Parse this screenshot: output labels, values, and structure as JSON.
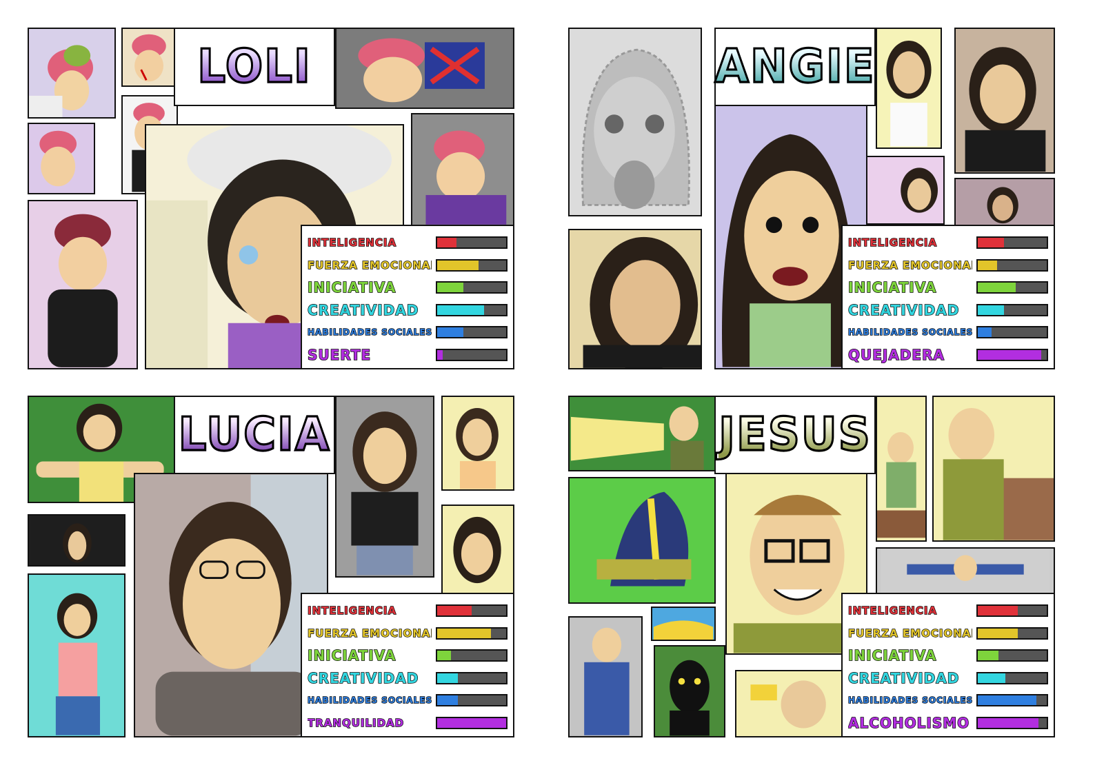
{
  "cards": [
    {
      "name": "LOLI",
      "name_gradient": [
        "#e9dcff",
        "#8a4fc7"
      ],
      "stats": [
        {
          "label": "INTELIGENCIA",
          "value": 0.28,
          "color": "#e0323a"
        },
        {
          "label": "FUERZA EMOCIONAL",
          "value": 0.6,
          "color": "#e2c52a"
        },
        {
          "label": "INICIATIVA",
          "value": 0.38,
          "color": "#7ed43c"
        },
        {
          "label": "CREATIVIDAD",
          "value": 0.68,
          "color": "#33d6e0"
        },
        {
          "label": "HABILIDADES SOCIALES",
          "value": 0.38,
          "color": "#2f7fe0"
        },
        {
          "label": "SUERTE",
          "value": 0.08,
          "color": "#b22ee0"
        }
      ]
    },
    {
      "name": "ANGIE",
      "name_gradient": [
        "#e8fbff",
        "#4aa9a9"
      ],
      "stats": [
        {
          "label": "INTELIGENCIA",
          "value": 0.38,
          "color": "#e0323a"
        },
        {
          "label": "FUERZA EMOCIONAL",
          "value": 0.28,
          "color": "#e2c52a"
        },
        {
          "label": "INICIATIVA",
          "value": 0.55,
          "color": "#7ed43c"
        },
        {
          "label": "CREATIVIDAD",
          "value": 0.38,
          "color": "#33d6e0"
        },
        {
          "label": "HABILIDADES SOCIALES",
          "value": 0.2,
          "color": "#2f7fe0"
        },
        {
          "label": "QUEJADERA",
          "value": 0.92,
          "color": "#b22ee0"
        }
      ]
    },
    {
      "name": "LUCIA",
      "name_gradient": [
        "#f7e9ff",
        "#7a3fb0"
      ],
      "stats": [
        {
          "label": "INTELIGENCIA",
          "value": 0.5,
          "color": "#e0323a"
        },
        {
          "label": "FUERZA EMOCIONAL",
          "value": 0.78,
          "color": "#e2c52a"
        },
        {
          "label": "INICIATIVA",
          "value": 0.2,
          "color": "#7ed43c"
        },
        {
          "label": "CREATIVIDAD",
          "value": 0.3,
          "color": "#33d6e0"
        },
        {
          "label": "HABILIDADES SOCIALES",
          "value": 0.3,
          "color": "#2f7fe0"
        },
        {
          "label": "TRANQUILIDAD",
          "value": 1.0,
          "color": "#b22ee0"
        }
      ]
    },
    {
      "name": "JESUS",
      "name_gradient": [
        "#fbfbe6",
        "#8f9a4a"
      ],
      "stats": [
        {
          "label": "INTELIGENCIA",
          "value": 0.58,
          "color": "#e0323a"
        },
        {
          "label": "FUERZA EMOCIONAL",
          "value": 0.58,
          "color": "#e2c52a"
        },
        {
          "label": "INICIATIVA",
          "value": 0.3,
          "color": "#7ed43c"
        },
        {
          "label": "CREATIVIDAD",
          "value": 0.4,
          "color": "#33d6e0"
        },
        {
          "label": "HABILIDADES SOCIALES",
          "value": 0.85,
          "color": "#2f7fe0"
        },
        {
          "label": "ALCOHOLISMO",
          "value": 0.88,
          "color": "#b22ee0"
        }
      ]
    }
  ]
}
